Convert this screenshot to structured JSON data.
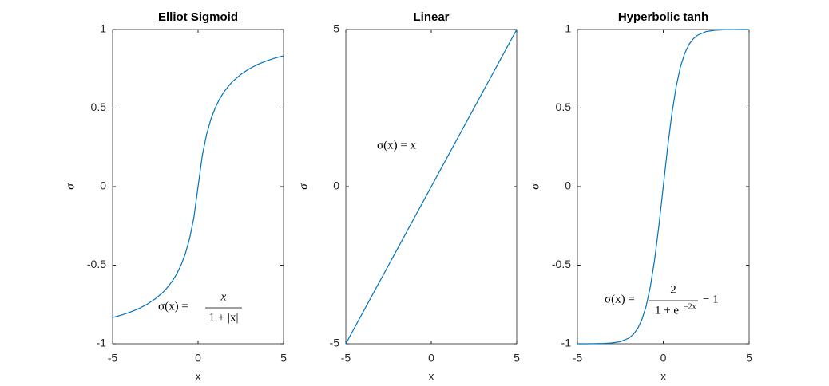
{
  "chart_data": [
    {
      "type": "line",
      "title": "Elliot Sigmoid",
      "xlabel": "x",
      "ylabel": "σ",
      "xlim": [
        -5,
        5
      ],
      "ylim": [
        -1,
        1
      ],
      "xticks": [
        -5,
        0,
        5
      ],
      "yticks": [
        -1,
        -0.5,
        0,
        0.5,
        1
      ],
      "series": [
        {
          "color": "#0072bd",
          "x": [
            -5,
            -4.5,
            -4,
            -3.5,
            -3,
            -2.5,
            -2,
            -1.75,
            -1.5,
            -1.25,
            -1,
            -0.75,
            -0.5,
            -0.25,
            0,
            0.25,
            0.5,
            0.75,
            1,
            1.25,
            1.5,
            1.75,
            2,
            2.5,
            3,
            3.5,
            4,
            4.5,
            5
          ],
          "values": [
            -0.833,
            -0.818,
            -0.8,
            -0.778,
            -0.75,
            -0.714,
            -0.667,
            -0.636,
            -0.6,
            -0.556,
            -0.5,
            -0.429,
            -0.333,
            -0.2,
            0,
            0.2,
            0.333,
            0.429,
            0.5,
            0.556,
            0.6,
            0.636,
            0.667,
            0.714,
            0.75,
            0.778,
            0.8,
            0.818,
            0.833
          ]
        }
      ],
      "annotation": {
        "lhs": "σ(x) =",
        "numerator": "x",
        "denominator": "1 + |x|"
      }
    },
    {
      "type": "line",
      "title": "Linear",
      "xlabel": "x",
      "ylabel": "σ",
      "xlim": [
        -5,
        5
      ],
      "ylim": [
        -5,
        5
      ],
      "xticks": [
        -5,
        0,
        5
      ],
      "yticks": [
        -5,
        0,
        5
      ],
      "series": [
        {
          "color": "#0072bd",
          "x": [
            -5,
            5
          ],
          "values": [
            -5,
            5
          ]
        }
      ],
      "annotation": {
        "lhs": "σ(x) = x"
      }
    },
    {
      "type": "line",
      "title": "Hyperbolic tanh",
      "xlabel": "x",
      "ylabel": "σ",
      "xlim": [
        -5,
        5
      ],
      "ylim": [
        -1,
        1
      ],
      "xticks": [
        -5,
        0,
        5
      ],
      "yticks": [
        -1,
        -0.5,
        0,
        0.5,
        1
      ],
      "series": [
        {
          "color": "#0072bd",
          "x": [
            -5,
            -4.5,
            -4,
            -3.5,
            -3,
            -2.5,
            -2,
            -1.75,
            -1.5,
            -1.25,
            -1,
            -0.75,
            -0.5,
            -0.25,
            0,
            0.25,
            0.5,
            0.75,
            1,
            1.25,
            1.5,
            1.75,
            2,
            2.5,
            3,
            3.5,
            4,
            4.5,
            5
          ],
          "values": [
            -1.0,
            -1.0,
            -0.999,
            -0.998,
            -0.995,
            -0.987,
            -0.964,
            -0.941,
            -0.905,
            -0.848,
            -0.762,
            -0.635,
            -0.462,
            -0.245,
            0,
            0.245,
            0.462,
            0.635,
            0.762,
            0.848,
            0.905,
            0.941,
            0.964,
            0.987,
            0.995,
            0.998,
            0.999,
            1.0,
            1.0
          ]
        }
      ],
      "annotation": {
        "lhs": "σ(x) =",
        "numerator": "2",
        "denominator": "1 + e",
        "superscript": "−2x",
        "rhs": "− 1"
      }
    }
  ]
}
